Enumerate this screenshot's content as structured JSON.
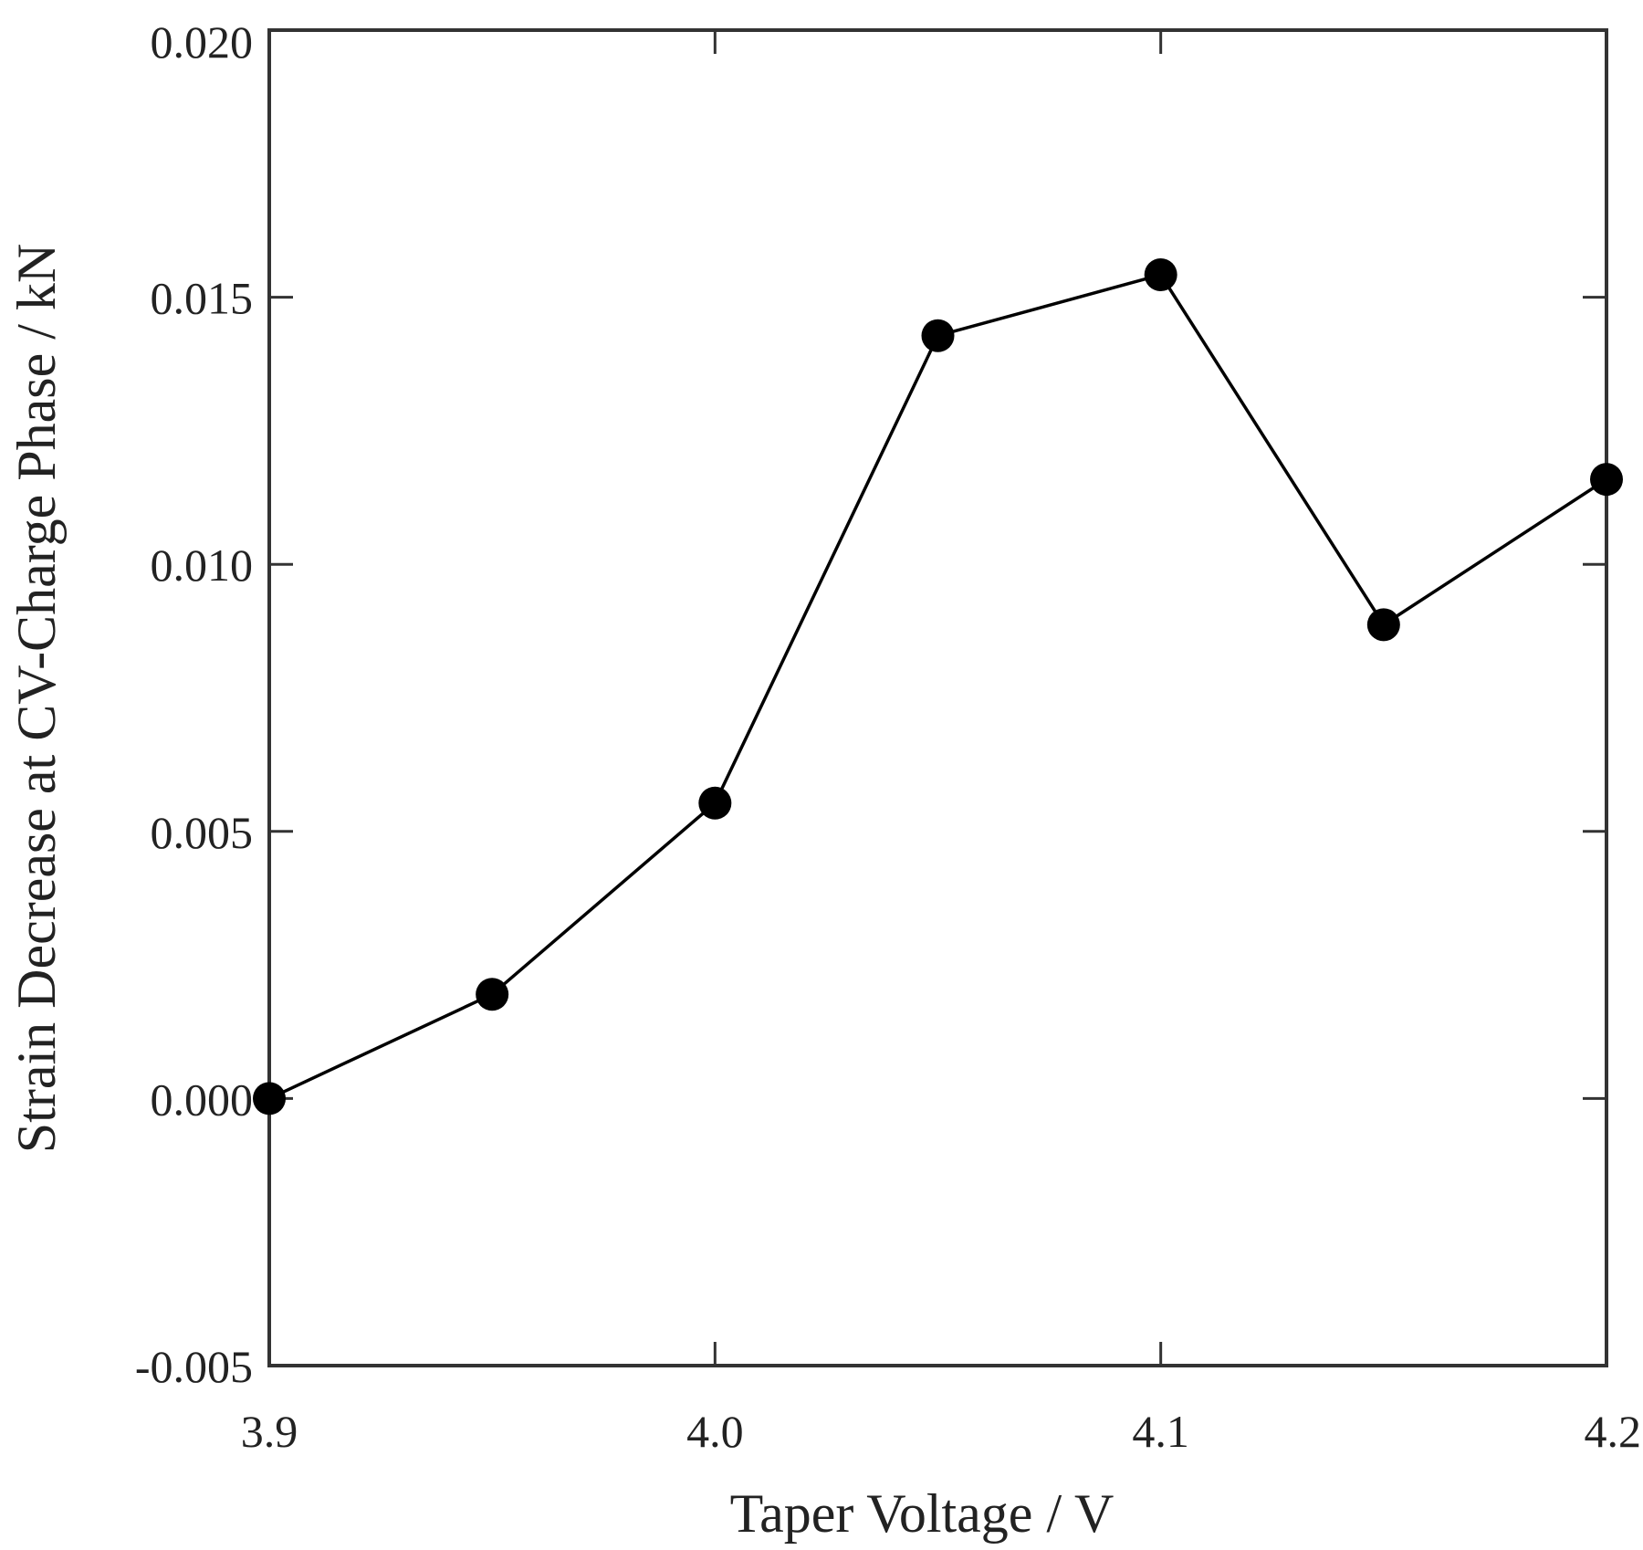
{
  "chart_data": {
    "type": "line",
    "xlabel": "Taper Voltage / V",
    "ylabel": "Strain Decrease at CV-Charge Phase / kN",
    "xlim": [
      3.9,
      4.2
    ],
    "ylim": [
      -0.005,
      0.02
    ],
    "x_ticks": [
      "3.9",
      "4.0",
      "4.1",
      "4.2"
    ],
    "y_ticks": [
      "-0.005",
      "0.000",
      "0.005",
      "0.010",
      "0.015",
      "0.020"
    ],
    "grid": false,
    "legend": "none",
    "series": [
      {
        "x": [
          3.9,
          3.95,
          4.0,
          4.05,
          4.1,
          4.15,
          4.2
        ],
        "y": [
          0.0,
          0.00195,
          0.00553,
          0.01428,
          0.01542,
          0.00887,
          0.01159
        ],
        "color": "#000000",
        "marker": "circle"
      }
    ]
  }
}
